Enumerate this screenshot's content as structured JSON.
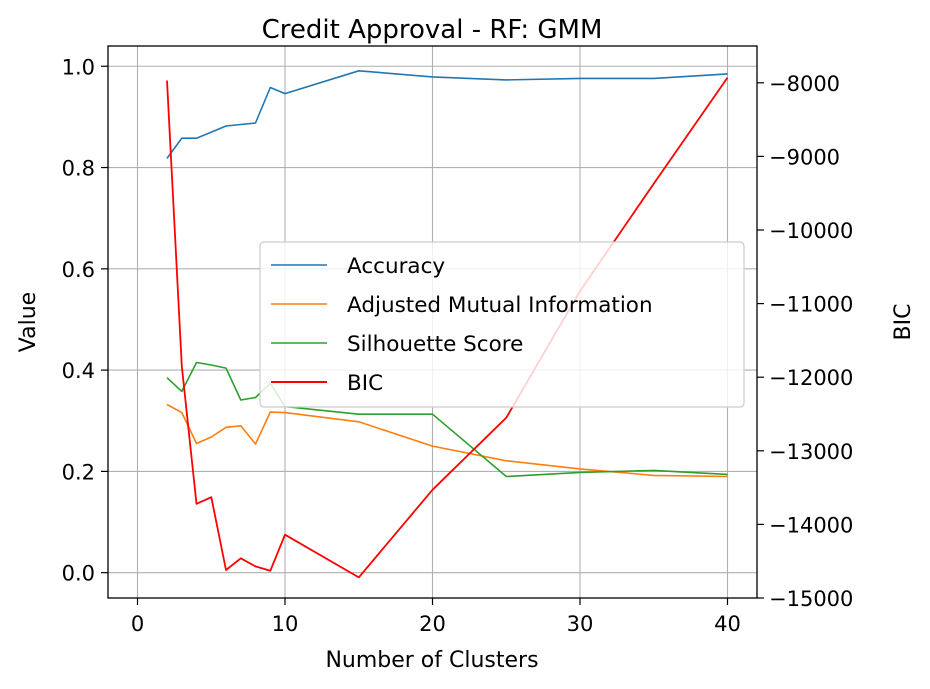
{
  "chart_data": {
    "type": "line",
    "title": "Credit Approval - RF: GMM",
    "xlabel": "Number of Clusters",
    "ylabel": "Value",
    "y2label": "BIC",
    "xlim": [
      -2,
      42
    ],
    "ylim": [
      -0.05,
      1.04
    ],
    "y2lim": [
      -15000,
      -7500
    ],
    "xticks": [
      0,
      10,
      20,
      30,
      40
    ],
    "yticks": [
      0.0,
      0.2,
      0.4,
      0.6,
      0.8,
      1.0
    ],
    "y2ticks": [
      -15000,
      -14000,
      -13000,
      -12000,
      -11000,
      -10000,
      -9000,
      -8000
    ],
    "ytick_labels": [
      "0.0",
      "0.2",
      "0.4",
      "0.6",
      "0.8",
      "1.0"
    ],
    "y2tick_labels": [
      "−15000",
      "−14000",
      "−13000",
      "−12000",
      "−11000",
      "−10000",
      "−9000",
      "−8000"
    ],
    "grid": true,
    "legend_position": "center-right",
    "x": [
      2,
      3,
      4,
      5,
      6,
      7,
      8,
      9,
      10,
      15,
      20,
      25,
      30,
      35,
      40
    ],
    "series": [
      {
        "name": "Accuracy",
        "axis": "left",
        "color": "#1f77b4",
        "values": [
          0.818,
          0.858,
          0.858,
          0.87,
          0.882,
          0.885,
          0.888,
          0.958,
          0.946,
          0.991,
          0.979,
          0.973,
          0.976,
          0.976,
          0.985
        ]
      },
      {
        "name": "Adjusted Mutual Information",
        "axis": "left",
        "color": "#ff7f0e",
        "values": [
          0.332,
          0.316,
          0.255,
          0.268,
          0.287,
          0.29,
          0.254,
          0.317,
          0.316,
          0.298,
          0.25,
          0.221,
          0.205,
          0.192,
          0.19
        ]
      },
      {
        "name": "Silhouette Score",
        "axis": "left",
        "color": "#2ca02c",
        "values": [
          0.385,
          0.358,
          0.415,
          0.41,
          0.404,
          0.341,
          0.346,
          0.374,
          0.328,
          0.313,
          0.313,
          0.19,
          0.198,
          0.202,
          0.194
        ]
      },
      {
        "name": "BIC",
        "axis": "right",
        "color": "#ff0000",
        "values": [
          -7970,
          -11850,
          -13720,
          -13630,
          -14620,
          -14460,
          -14570,
          -14630,
          -14140,
          -14720,
          -13530,
          -12550,
          -10830,
          -9370,
          -7930
        ]
      }
    ]
  }
}
